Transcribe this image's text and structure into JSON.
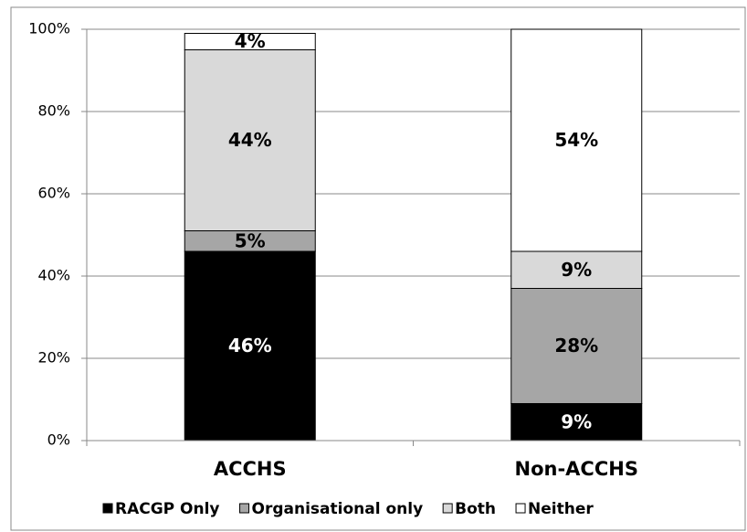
{
  "chart_data": {
    "type": "stacked-bar",
    "categories": [
      "ACCHS",
      "Non-ACCHS"
    ],
    "series": [
      {
        "name": "RACGP Only",
        "color": "#000000",
        "values": [
          46,
          9
        ],
        "value_labels": [
          "46%",
          "9%"
        ]
      },
      {
        "name": "Organisational only",
        "color": "#a6a6a6",
        "values": [
          5,
          28
        ],
        "value_labels": [
          "5%",
          "28%"
        ]
      },
      {
        "name": "Both",
        "color": "#d9d9d9",
        "values": [
          44,
          9
        ],
        "value_labels": [
          "44%",
          "9%"
        ]
      },
      {
        "name": "Neither",
        "color": "#ffffff",
        "values": [
          4,
          54
        ],
        "value_labels": [
          "4%",
          "54%"
        ]
      }
    ],
    "ylim": [
      0,
      100
    ],
    "yticks": [
      {
        "value": 0,
        "label": "0%"
      },
      {
        "value": 20,
        "label": "20%"
      },
      {
        "value": 40,
        "label": "40%"
      },
      {
        "value": 60,
        "label": "60%"
      },
      {
        "value": 80,
        "label": "80%"
      },
      {
        "value": 100,
        "label": "100%"
      }
    ],
    "grid": true,
    "legend": "bottom"
  }
}
